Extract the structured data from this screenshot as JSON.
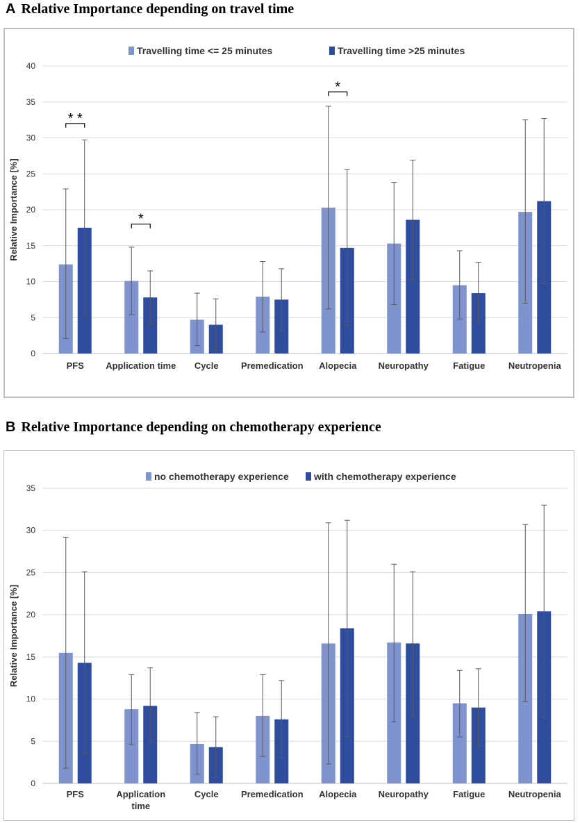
{
  "panel_a": {
    "letter": "A",
    "title": "Relative Importance depending on travel time"
  },
  "panel_b": {
    "letter": "B",
    "title": "Relative Importance depending on chemotherapy experience"
  },
  "colors": {
    "series_light": "#7f93cf",
    "series_dark": "#2f4d9e",
    "grid": "#d9d9d9",
    "error_bar": "#595959",
    "frame": "#bfbfbf"
  },
  "chart_data": [
    {
      "type": "bar",
      "title": "Relative Importance depending on travel time",
      "xlabel": "",
      "ylabel": "Relative Importance [%]",
      "ylim": [
        0,
        40
      ],
      "yticks": [
        0,
        5,
        10,
        15,
        20,
        25,
        30,
        35,
        40
      ],
      "grid": true,
      "legend_position": "top",
      "categories": [
        "PFS",
        "Application time",
        "Cycle",
        "Premedication",
        "Alopecia",
        "Neuropathy",
        "Fatigue",
        "Neutropenia"
      ],
      "series": [
        {
          "name": "Travelling time <= 25 minutes",
          "values": [
            12.4,
            10.1,
            4.7,
            7.9,
            20.3,
            15.3,
            9.5,
            19.7
          ],
          "error_low": [
            2.1,
            5.4,
            1.1,
            3.0,
            6.2,
            6.8,
            4.8,
            7.0
          ],
          "error_high": [
            22.9,
            14.8,
            8.4,
            12.8,
            34.4,
            23.8,
            14.3,
            32.5
          ]
        },
        {
          "name": "Travelling time >25 minutes",
          "values": [
            17.5,
            7.8,
            4.0,
            7.5,
            14.7,
            18.6,
            8.4,
            21.2
          ],
          "error_low": [
            5.3,
            4.1,
            0.4,
            3.2,
            3.9,
            10.3,
            4.2,
            9.7
          ],
          "error_high": [
            29.7,
            11.5,
            7.6,
            11.8,
            25.6,
            26.9,
            12.7,
            32.7
          ]
        }
      ],
      "significance": [
        {
          "category": "PFS",
          "label": "**",
          "y": 32
        },
        {
          "category": "Application time",
          "label": "*",
          "y": 18
        },
        {
          "category": "Alopecia",
          "label": "*",
          "y": 36.4
        }
      ]
    },
    {
      "type": "bar",
      "title": "Relative Importance depending on chemotherapy experience",
      "xlabel": "",
      "ylabel": "Relative Importance [%]",
      "ylim": [
        0,
        35
      ],
      "yticks": [
        0,
        5,
        10,
        15,
        20,
        25,
        30,
        35
      ],
      "grid": true,
      "legend_position": "top",
      "categories": [
        "PFS",
        "Application time",
        "Cycle",
        "Premedication",
        "Alopecia",
        "Neuropathy",
        "Fatigue",
        "Neutropenia"
      ],
      "series": [
        {
          "name": "no chemotherapy experience",
          "values": [
            15.5,
            8.8,
            4.7,
            8.0,
            16.6,
            16.7,
            9.5,
            20.1
          ],
          "error_low": [
            1.8,
            4.6,
            1.1,
            3.2,
            2.3,
            7.3,
            5.5,
            9.7
          ],
          "error_high": [
            29.2,
            12.9,
            8.4,
            12.9,
            30.9,
            26.0,
            13.4,
            30.7
          ]
        },
        {
          "name": "with chemotherapy experience",
          "values": [
            14.3,
            9.2,
            4.3,
            7.6,
            18.4,
            16.6,
            9.0,
            20.4
          ],
          "error_low": [
            3.6,
            4.8,
            0.7,
            3.0,
            5.6,
            8.0,
            4.4,
            7.8
          ],
          "error_high": [
            25.1,
            13.7,
            7.9,
            12.2,
            31.2,
            25.1,
            13.6,
            33.0
          ]
        }
      ],
      "significance": []
    }
  ]
}
